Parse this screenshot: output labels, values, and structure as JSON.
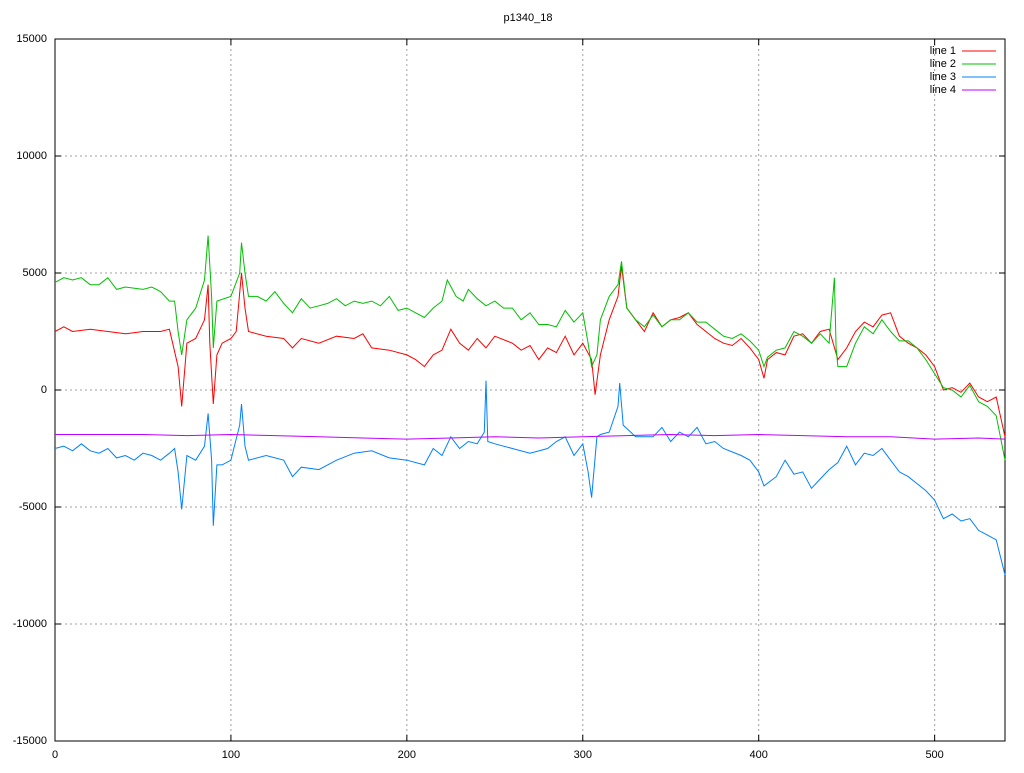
{
  "chart_data": {
    "type": "line",
    "title": "p1340_18",
    "xlim": [
      0,
      540
    ],
    "xticks": [
      0,
      100,
      200,
      300,
      400,
      500
    ],
    "ylim": [
      -15000,
      15000
    ],
    "yticks": [
      -15000,
      -10000,
      -5000,
      0,
      5000,
      10000,
      15000
    ],
    "grid": true,
    "legend_position": "top-right",
    "series": [
      {
        "name": "line 1",
        "color": "#ff0000",
        "x": [
          0,
          5,
          10,
          20,
          30,
          40,
          50,
          60,
          65,
          70,
          72,
          75,
          80,
          85,
          87,
          88,
          90,
          92,
          95,
          100,
          103,
          106,
          108,
          110,
          120,
          130,
          135,
          140,
          150,
          160,
          170,
          175,
          180,
          190,
          200,
          205,
          210,
          215,
          220,
          225,
          230,
          235,
          240,
          245,
          250,
          260,
          265,
          270,
          275,
          280,
          285,
          290,
          295,
          300,
          305,
          307,
          310,
          315,
          320,
          322,
          325,
          330,
          335,
          340,
          345,
          350,
          355,
          360,
          365,
          370,
          375,
          380,
          385,
          390,
          395,
          400,
          403,
          405,
          410,
          415,
          420,
          425,
          430,
          435,
          440,
          445,
          450,
          455,
          460,
          465,
          470,
          475,
          480,
          485,
          490,
          495,
          500,
          505,
          510,
          515,
          520,
          525,
          530,
          535,
          540
        ],
        "values": [
          2500,
          2700,
          2500,
          2600,
          2500,
          2400,
          2500,
          2500,
          2600,
          1000,
          -700,
          2000,
          2200,
          3000,
          4500,
          2000,
          -600,
          1500,
          2000,
          2200,
          2500,
          5000,
          3500,
          2500,
          2300,
          2200,
          1800,
          2200,
          2000,
          2300,
          2200,
          2400,
          1800,
          1700,
          1500,
          1300,
          1000,
          1500,
          1700,
          2600,
          2000,
          1700,
          2200,
          1800,
          2300,
          2000,
          1700,
          1900,
          1300,
          1800,
          1600,
          2300,
          1500,
          2000,
          1300,
          -200,
          1500,
          3000,
          4000,
          5300,
          3500,
          3000,
          2500,
          3300,
          2700,
          3000,
          3100,
          3300,
          2800,
          2500,
          2200,
          2000,
          1900,
          2200,
          1800,
          1300,
          500,
          1300,
          1600,
          1500,
          2300,
          2400,
          2000,
          2500,
          2600,
          1300,
          1800,
          2500,
          2900,
          2700,
          3200,
          3300,
          2300,
          2000,
          1800,
          1500,
          1000,
          0,
          100,
          -100,
          300,
          -300,
          -500,
          -300,
          -2000
        ]
      },
      {
        "name": "line 2",
        "color": "#00c000",
        "x": [
          0,
          5,
          10,
          15,
          20,
          25,
          30,
          35,
          40,
          50,
          55,
          60,
          65,
          68,
          70,
          72,
          75,
          80,
          85,
          87,
          89,
          90,
          92,
          100,
          105,
          106,
          108,
          110,
          115,
          120,
          125,
          130,
          135,
          140,
          145,
          150,
          155,
          160,
          165,
          170,
          175,
          180,
          185,
          190,
          195,
          200,
          205,
          210,
          215,
          220,
          223,
          228,
          232,
          235,
          240,
          245,
          250,
          255,
          260,
          265,
          270,
          275,
          280,
          285,
          290,
          295,
          300,
          303,
          305,
          308,
          310,
          315,
          320,
          322,
          325,
          330,
          335,
          340,
          345,
          350,
          355,
          360,
          365,
          370,
          375,
          380,
          385,
          390,
          395,
          400,
          403,
          405,
          410,
          415,
          420,
          425,
          430,
          435,
          440,
          443,
          444,
          445,
          450,
          455,
          460,
          465,
          470,
          475,
          480,
          485,
          490,
          495,
          500,
          505,
          510,
          515,
          520,
          525,
          530,
          535,
          540
        ],
        "values": [
          4600,
          4800,
          4700,
          4800,
          4500,
          4500,
          4800,
          4300,
          4400,
          4300,
          4400,
          4200,
          3800,
          3800,
          2500,
          1500,
          3000,
          3500,
          4700,
          6600,
          4000,
          1800,
          3800,
          4000,
          5000,
          6300,
          5000,
          4000,
          4000,
          3800,
          4200,
          3700,
          3300,
          3900,
          3500,
          3600,
          3700,
          3900,
          3600,
          3800,
          3700,
          3800,
          3600,
          4000,
          3400,
          3500,
          3300,
          3100,
          3500,
          3800,
          4700,
          4000,
          3800,
          4300,
          3900,
          3600,
          3800,
          3500,
          3500,
          3000,
          3300,
          2800,
          2800,
          2700,
          3400,
          2900,
          3300,
          2000,
          1000,
          1500,
          3000,
          4000,
          4500,
          5500,
          3500,
          3000,
          2700,
          3200,
          2700,
          3000,
          3000,
          3300,
          2900,
          2900,
          2600,
          2300,
          2200,
          2400,
          2100,
          1700,
          1000,
          1400,
          1700,
          1800,
          2500,
          2300,
          2000,
          2400,
          2000,
          4800,
          1800,
          1000,
          1000,
          2000,
          2700,
          2400,
          3000,
          2500,
          2100,
          2100,
          1800,
          1300,
          700,
          100,
          0,
          -300,
          200,
          -500,
          -700,
          -1100,
          -3000
        ]
      },
      {
        "name": "line 3",
        "color": "#0080ff",
        "x": [
          0,
          5,
          10,
          15,
          20,
          25,
          30,
          35,
          40,
          45,
          50,
          55,
          60,
          65,
          68,
          70,
          72,
          75,
          80,
          85,
          87,
          89,
          90,
          92,
          95,
          100,
          105,
          106,
          108,
          110,
          120,
          130,
          135,
          140,
          150,
          160,
          170,
          180,
          190,
          200,
          210,
          215,
          220,
          225,
          230,
          235,
          240,
          244,
          245,
          246,
          250,
          260,
          270,
          280,
          285,
          290,
          295,
          300,
          303,
          305,
          308,
          310,
          315,
          320,
          321,
          323,
          330,
          340,
          345,
          350,
          355,
          360,
          365,
          370,
          375,
          380,
          390,
          395,
          400,
          403,
          410,
          415,
          420,
          425,
          430,
          435,
          440,
          445,
          450,
          455,
          460,
          465,
          470,
          475,
          480,
          485,
          490,
          495,
          500,
          505,
          510,
          515,
          520,
          525,
          530,
          535,
          540
        ],
        "values": [
          -2500,
          -2400,
          -2600,
          -2300,
          -2600,
          -2700,
          -2500,
          -2900,
          -2800,
          -3000,
          -2700,
          -2800,
          -3000,
          -2700,
          -2500,
          -3500,
          -5100,
          -2800,
          -3000,
          -2400,
          -1000,
          -3000,
          -5800,
          -3200,
          -3200,
          -3000,
          -1500,
          -600,
          -2400,
          -3000,
          -2800,
          -3000,
          -3700,
          -3300,
          -3400,
          -3000,
          -2700,
          -2600,
          -2900,
          -3000,
          -3200,
          -2500,
          -2800,
          -2000,
          -2500,
          -2200,
          -2300,
          -1800,
          400,
          -2200,
          -2300,
          -2500,
          -2700,
          -2500,
          -2200,
          -2000,
          -2800,
          -2300,
          -3500,
          -4600,
          -2000,
          -1900,
          -1800,
          -700,
          300,
          -1500,
          -2000,
          -2000,
          -1600,
          -2200,
          -1800,
          -2000,
          -1600,
          -2300,
          -2200,
          -2500,
          -2800,
          -3000,
          -3500,
          -4100,
          -3700,
          -3000,
          -3600,
          -3500,
          -4200,
          -3800,
          -3400,
          -3100,
          -2400,
          -3200,
          -2700,
          -2800,
          -2500,
          -3000,
          -3500,
          -3700,
          -4000,
          -4300,
          -4700,
          -5500,
          -5300,
          -5600,
          -5500,
          -6000,
          -6200,
          -6400,
          -7900
        ]
      },
      {
        "name": "line 4",
        "color": "#c000ff",
        "x": [
          0,
          25,
          50,
          75,
          100,
          125,
          150,
          175,
          200,
          225,
          250,
          275,
          300,
          325,
          350,
          375,
          400,
          425,
          450,
          475,
          500,
          525,
          540
        ],
        "values": [
          -1900,
          -1900,
          -1900,
          -1950,
          -1900,
          -1950,
          -2000,
          -2050,
          -2100,
          -2050,
          -2000,
          -2050,
          -2000,
          -1950,
          -1900,
          -1950,
          -1900,
          -1950,
          -2000,
          -2000,
          -2100,
          -2050,
          -2100
        ]
      }
    ]
  }
}
